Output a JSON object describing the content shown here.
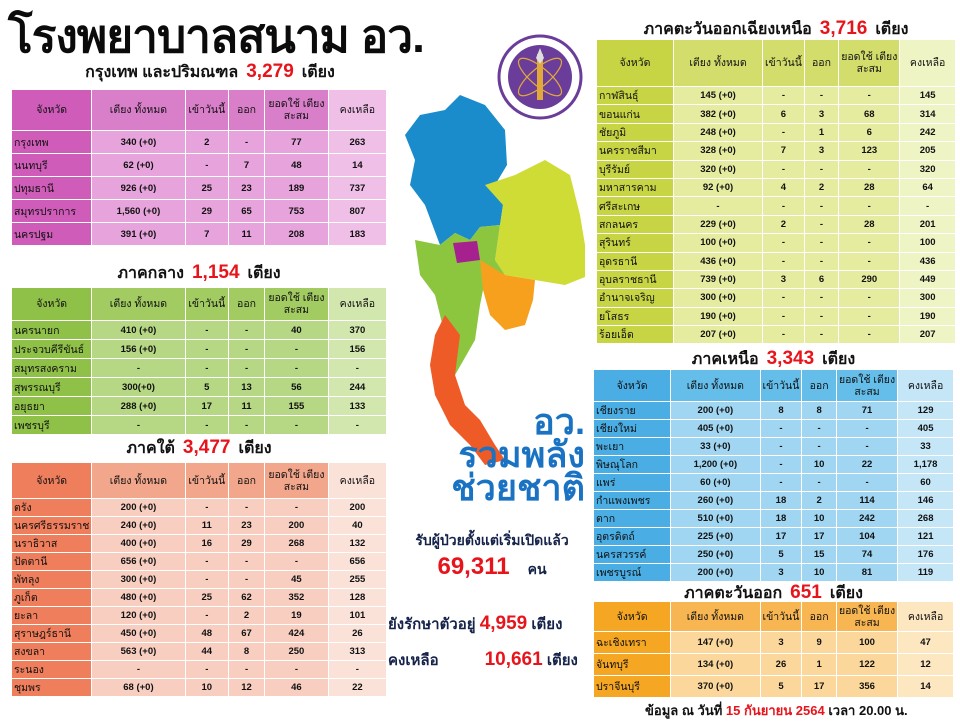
{
  "title": "โรงพยาบาลสนาม อว.",
  "columns": [
    "จังหวัด",
    "เตียง ทั้งหมด",
    "เข้าวันนี้",
    "ออก",
    "ยอดใช้ เตียงสะสม",
    "คงเหลือ"
  ],
  "unit_beds": "เตียง",
  "regions": {
    "bangkok": {
      "name": "กรุงเทพ และปริมณฑล",
      "total": "3,279",
      "colors": {
        "head": "#d97fca",
        "prov": "#cf5cb9",
        "cell": "#e7a3dc",
        "last": "#efbfe7"
      },
      "rows": [
        [
          "กรุงเทพ",
          "340 (+0)",
          "2",
          "-",
          "77",
          "263"
        ],
        [
          "นนทบุรี",
          "62 (+0)",
          "-",
          "7",
          "48",
          "14"
        ],
        [
          "ปทุมธานี",
          "926 (+0)",
          "25",
          "23",
          "189",
          "737"
        ],
        [
          "สมุทรปราการ",
          "1,560 (+0)",
          "29",
          "65",
          "753",
          "807"
        ],
        [
          "นครปฐม",
          "391 (+0)",
          "7",
          "11",
          "208",
          "183"
        ]
      ]
    },
    "central": {
      "name": "ภาคกลาง",
      "total": "1,154",
      "colors": {
        "head": "#a2cb62",
        "prov": "#8fc048",
        "cell": "#b6d783",
        "last": "#d2e7ad"
      },
      "rows": [
        [
          "นครนายก",
          "410 (+0)",
          "-",
          "-",
          "40",
          "370"
        ],
        [
          "ประจวบคีรีขันธ์",
          "156 (+0)",
          "-",
          "-",
          "-",
          "156"
        ],
        [
          "สมุทรสงคราม",
          "-",
          "-",
          "-",
          "-",
          "-"
        ],
        [
          "สุพรรณบุรี",
          "300(+0)",
          "5",
          "13",
          "56",
          "244"
        ],
        [
          "อยุธยา",
          "288 (+0)",
          "17",
          "11",
          "155",
          "133"
        ],
        [
          "เพชรบุรี",
          "-",
          "-",
          "-",
          "-",
          "-"
        ]
      ]
    },
    "south": {
      "name": "ภาคใต้",
      "total": "3,477",
      "colors": {
        "head": "#f2a68c",
        "prov": "#ef7e5d",
        "cell": "#f8cec0",
        "last": "#fbe2d9"
      },
      "rows": [
        [
          "ตรัง",
          "200 (+0)",
          "-",
          "-",
          "-",
          "200"
        ],
        [
          "นครศรีธรรมราช",
          "240 (+0)",
          "11",
          "23",
          "200",
          "40"
        ],
        [
          "นราธิวาส",
          "400 (+0)",
          "16",
          "29",
          "268",
          "132"
        ],
        [
          "ปัตตานี",
          "656 (+0)",
          "-",
          "-",
          "-",
          "656"
        ],
        [
          "พัทลุง",
          "300 (+0)",
          "-",
          "-",
          "45",
          "255"
        ],
        [
          "ภูเก็ต",
          "480 (+0)",
          "25",
          "62",
          "352",
          "128"
        ],
        [
          "ยะลา",
          "120 (+0)",
          "-",
          "2",
          "19",
          "101"
        ],
        [
          "สุราษฎร์ธานี",
          "450 (+0)",
          "48",
          "67",
          "424",
          "26"
        ],
        [
          "สงขลา",
          "563 (+0)",
          "44",
          "8",
          "250",
          "313"
        ],
        [
          "ระนอง",
          "-",
          "-",
          "-",
          "-",
          "-"
        ],
        [
          "ชุมพร",
          "68 (+0)",
          "10",
          "12",
          "46",
          "22"
        ]
      ]
    },
    "northeast": {
      "name": "ภาคตะวันออกเฉียงเหนือ",
      "total": "3,716",
      "colors": {
        "head": "#d3dd6c",
        "prov": "#c7d544",
        "cell": "#e5eca0",
        "last": "#eff4c5"
      },
      "rows": [
        [
          "กาฬสินธุ์",
          "145 (+0)",
          "-",
          "-",
          "-",
          "145"
        ],
        [
          "ขอนแก่น",
          "382 (+0)",
          "6",
          "3",
          "68",
          "314"
        ],
        [
          "ชัยภูมิ",
          "248 (+0)",
          "-",
          "1",
          "6",
          "242"
        ],
        [
          "นครราชสีมา",
          "328 (+0)",
          "7",
          "3",
          "123",
          "205"
        ],
        [
          "บุรีรัมย์",
          "320 (+0)",
          "-",
          "-",
          "-",
          "320"
        ],
        [
          "มหาสารคาม",
          "92 (+0)",
          "4",
          "2",
          "28",
          "64"
        ],
        [
          "ศรีสะเกษ",
          "-",
          "-",
          "-",
          "-",
          "-"
        ],
        [
          "สกลนคร",
          "229 (+0)",
          "2",
          "-",
          "28",
          "201"
        ],
        [
          "สุรินทร์",
          "100 (+0)",
          "-",
          "-",
          "-",
          "100"
        ],
        [
          "อุดรธานี",
          "436 (+0)",
          "-",
          "-",
          "-",
          "436"
        ],
        [
          "อุบลราชธานี",
          "739 (+0)",
          "3",
          "6",
          "290",
          "449"
        ],
        [
          "อำนาจเจริญ",
          "300 (+0)",
          "-",
          "-",
          "-",
          "300"
        ],
        [
          "ยโสธร",
          "190 (+0)",
          "-",
          "-",
          "-",
          "190"
        ],
        [
          "ร้อยเอ็ด",
          "207 (+0)",
          "-",
          "-",
          "-",
          "207"
        ]
      ]
    },
    "north": {
      "name": "ภาคเหนือ",
      "total": "3,343",
      "colors": {
        "head": "#65bdea",
        "prov": "#4aaee5",
        "cell": "#a0d6f2",
        "last": "#c4e6f7"
      },
      "rows": [
        [
          "เชียงราย",
          "200 (+0)",
          "8",
          "8",
          "71",
          "129"
        ],
        [
          "เชียงใหม่",
          "405 (+0)",
          "-",
          "-",
          "-",
          "405"
        ],
        [
          "พะเยา",
          "33 (+0)",
          "-",
          "-",
          "-",
          "33"
        ],
        [
          "พิษณุโลก",
          "1,200 (+0)",
          "-",
          "10",
          "22",
          "1,178"
        ],
        [
          "แพร่",
          "60 (+0)",
          "-",
          "-",
          "-",
          "60"
        ],
        [
          "กำแพงเพชร",
          "260 (+0)",
          "18",
          "2",
          "114",
          "146"
        ],
        [
          "ตาก",
          "510 (+0)",
          "18",
          "10",
          "242",
          "268"
        ],
        [
          "อุตรดิตถ์",
          "225 (+0)",
          "17",
          "17",
          "104",
          "121"
        ],
        [
          "นครสวรรค์",
          "250 (+0)",
          "5",
          "15",
          "74",
          "176"
        ],
        [
          "เพชรบูรณ์",
          "200 (+0)",
          "3",
          "10",
          "81",
          "119"
        ]
      ]
    },
    "east": {
      "name": "ภาคตะวันออก",
      "total": "651",
      "colors": {
        "head": "#f8b652",
        "prov": "#f5a623",
        "cell": "#fbd79c",
        "last": "#fde7c1"
      },
      "rows": [
        [
          "ฉะเชิงเทรา",
          "147 (+0)",
          "3",
          "9",
          "100",
          "47"
        ],
        [
          "จันทบุรี",
          "134 (+0)",
          "26",
          "1",
          "122",
          "12"
        ],
        [
          "ปราจีนบุรี",
          "370 (+0)",
          "5",
          "17",
          "356",
          "14"
        ]
      ]
    }
  },
  "slogan": [
    "อว.",
    "รวมพลัง",
    "ช่วยชาติ"
  ],
  "summary": {
    "since_label": "รับผู้ป่วยตั้งแต่เริ่มเปิดแล้ว",
    "patients_total": "69,311",
    "patients_unit": "คน",
    "treating_label": "ยังรักษาตัวอยู่",
    "treating_value": "4,959",
    "remaining_label": "คงเหลือ",
    "remaining_value": "10,661"
  },
  "footer": {
    "prefix": "ข้อมูล ณ วันที่",
    "date": "15 กันยายน 2564",
    "time_label": "เวลา",
    "time": "20.00 น."
  },
  "map_colors": {
    "north": "#1a8ccc",
    "northeast": "#cfdc35",
    "central": "#8cc63f",
    "bangkok": "#a6208f",
    "east": "#f7a01e",
    "south": "#ef5b26"
  },
  "logo_color": "#6a3d9a"
}
